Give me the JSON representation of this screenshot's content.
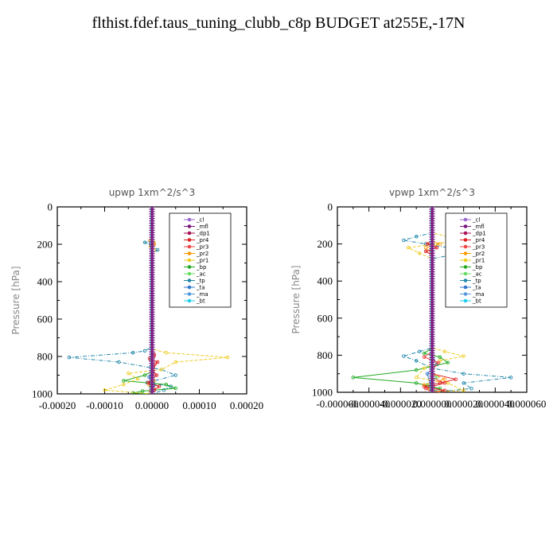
{
  "title": "flthist.fdef.taus_tuning_clubb_c8p  BUDGET at255E,-17N",
  "chart_data": [
    {
      "type": "line",
      "title": "upwp   1xm^2/s^3",
      "ylabel": "Pressure [hPa]",
      "xlim": [
        -0.0002,
        0.0002
      ],
      "ylim": [
        1000,
        0
      ],
      "xticks": [
        -0.0002,
        -0.0001,
        0,
        0.0001,
        0.0002
      ],
      "xtick_labels": [
        "-0.00020",
        "-0.00010",
        "0.00000",
        "0.00010",
        "0.00020"
      ],
      "yticks": [
        0,
        200,
        400,
        600,
        800,
        1000
      ],
      "ytick_labels": [
        "0",
        "200",
        "400",
        "600",
        "800",
        "1000"
      ],
      "legend_position": "top-right",
      "series": [
        {
          "name": "_cl",
          "color": "#9966cc",
          "x": [
            0,
            0
          ],
          "y": [
            0,
            1000
          ]
        },
        {
          "name": "_mfl",
          "color": "#7a1a7a",
          "x": [
            0,
            0
          ],
          "y": [
            0,
            1000
          ]
        },
        {
          "name": "_dp1",
          "color": "#aa1155",
          "x": [
            0,
            0
          ],
          "y": [
            0,
            1000
          ]
        },
        {
          "name": "_pr4",
          "color": "#dd2222",
          "x": [
            0,
            0,
            5e-06,
            -5e-06,
            1.2e-05,
            0,
            1e-05,
            -8e-06,
            1.5e-05,
            5e-06,
            0
          ],
          "y": [
            0,
            770,
            790,
            810,
            830,
            870,
            900,
            940,
            960,
            980,
            1000
          ]
        },
        {
          "name": "_pr3",
          "color": "#ee4444",
          "x": [
            0,
            0,
            4e-06,
            -3e-06,
            6e-06,
            0
          ],
          "y": [
            0,
            780,
            800,
            820,
            840,
            1000
          ]
        },
        {
          "name": "_pr2",
          "color": "#ff9900",
          "x": [
            0,
            0,
            -4e-06,
            5e-06,
            0,
            0,
            4e-06,
            -6e-06,
            4e-06,
            -3e-06,
            0
          ],
          "y": [
            0,
            170,
            180,
            200,
            220,
            900,
            930,
            950,
            970,
            990,
            1000
          ]
        },
        {
          "name": "_pr1",
          "color": "#eecc22",
          "x": [
            0,
            0,
            4e-06,
            -3e-06,
            5e-06,
            0,
            0,
            3e-05,
            0.00016,
            5e-05,
            2e-05,
            -5e-05,
            -3e-05,
            -6e-05,
            -0.0001,
            0
          ],
          "y": [
            0,
            180,
            190,
            210,
            230,
            250,
            760,
            780,
            805,
            830,
            870,
            890,
            920,
            950,
            980,
            1000
          ]
        },
        {
          "name": "_bp",
          "color": "#22aa22",
          "x": [
            0,
            0,
            -1.5e-05,
            -6e-05,
            3e-05,
            5e-05,
            -2e-05,
            -4e-05,
            0
          ],
          "y": [
            0,
            880,
            900,
            930,
            950,
            970,
            985,
            995,
            1000
          ]
        },
        {
          "name": "_ac",
          "color": "#66dd66",
          "x": [
            0,
            0,
            3e-06,
            -3e-06,
            0
          ],
          "y": [
            0,
            900,
            930,
            960,
            1000
          ]
        },
        {
          "name": "_tp",
          "color": "#2288aa",
          "x": [
            0,
            0,
            -1.5e-05,
            -3e-06,
            1.2e-05,
            0,
            0,
            -1.5e-05,
            -4e-05,
            -0.000175,
            -7e-05,
            2e-05,
            5e-05,
            -1e-05,
            4e-05,
            2.5e-05,
            0
          ],
          "y": [
            0,
            180,
            190,
            200,
            230,
            250,
            750,
            770,
            780,
            805,
            830,
            870,
            900,
            940,
            960,
            980,
            1000
          ]
        },
        {
          "name": "_ta",
          "color": "#3377cc",
          "x": [
            0,
            0,
            -6e-06,
            5e-06,
            0
          ],
          "y": [
            0,
            880,
            910,
            950,
            1000
          ]
        },
        {
          "name": "_ma",
          "color": "#5599dd",
          "x": [
            0,
            0
          ],
          "y": [
            0,
            1000
          ]
        },
        {
          "name": "_bt",
          "color": "#22ccee",
          "x": [
            0,
            0
          ],
          "y": [
            0,
            1000
          ]
        }
      ]
    },
    {
      "type": "line",
      "title": "vpwp   1xm^2/s^3",
      "ylabel": "Pressure [hPa]",
      "xlim": [
        -6e-05,
        6e-05
      ],
      "ylim": [
        1000,
        0
      ],
      "xticks": [
        -6e-05,
        -4e-05,
        -2e-05,
        0,
        2e-05,
        4e-05,
        6e-05
      ],
      "xtick_labels": [
        "-0.000060",
        "-0.000040",
        "-0.000020",
        "0.000000",
        "0.000020",
        "0.000040",
        "0.000060"
      ],
      "yticks": [
        0,
        200,
        400,
        600,
        800,
        1000
      ],
      "ytick_labels": [
        "0",
        "200",
        "400",
        "600",
        "800",
        "1000"
      ],
      "legend_position": "top-right",
      "series": [
        {
          "name": "_cl",
          "color": "#9966cc",
          "x": [
            0,
            0
          ],
          "y": [
            0,
            1000
          ]
        },
        {
          "name": "_mfl",
          "color": "#7a1a7a",
          "x": [
            0,
            0
          ],
          "y": [
            0,
            1000
          ]
        },
        {
          "name": "_dp1",
          "color": "#aa1155",
          "x": [
            0,
            0
          ],
          "y": [
            0,
            1000
          ]
        },
        {
          "name": "_pr4",
          "color": "#dd2222",
          "x": [
            0,
            0,
            -3e-06,
            3e-06,
            -4e-06,
            0,
            0,
            1.5e-05,
            5e-06,
            -5e-06,
            8e-06,
            0
          ],
          "y": [
            0,
            180,
            200,
            220,
            240,
            260,
            900,
            930,
            950,
            970,
            990,
            1000
          ]
        },
        {
          "name": "_pr3",
          "color": "#ee4444",
          "x": [
            0,
            0,
            -5e-06,
            4e-06,
            0,
            0,
            8e-06,
            -4e-06,
            0
          ],
          "y": [
            0,
            780,
            810,
            840,
            880,
            920,
            950,
            980,
            1000
          ]
        },
        {
          "name": "_pr2",
          "color": "#ff9900",
          "x": [
            0,
            0,
            5e-06,
            -4e-06,
            0,
            0,
            8e-06,
            -5e-06,
            0
          ],
          "y": [
            0,
            180,
            200,
            220,
            260,
            900,
            930,
            960,
            1000
          ]
        },
        {
          "name": "_pr1",
          "color": "#eecc22",
          "x": [
            0,
            0,
            1e-05,
            1.8e-05,
            2e-06,
            -1.5e-05,
            -8e-06,
            0,
            0,
            8e-06,
            2e-05,
            5e-06,
            -5e-06,
            -1e-05,
            1e-05,
            2e-05,
            0
          ],
          "y": [
            0,
            140,
            160,
            180,
            200,
            220,
            250,
            280,
            760,
            780,
            805,
            830,
            870,
            920,
            950,
            990,
            1000
          ]
        },
        {
          "name": "_bp",
          "color": "#22aa22",
          "x": [
            0,
            0,
            -5e-06,
            5e-06,
            1e-05,
            -1e-05,
            -5e-05,
            -1e-05,
            5e-06,
            0
          ],
          "y": [
            0,
            760,
            790,
            810,
            840,
            880,
            920,
            950,
            980,
            1000
          ]
        },
        {
          "name": "_ac",
          "color": "#66dd66",
          "x": [
            0,
            0,
            3e-06,
            -3e-06,
            0
          ],
          "y": [
            0,
            880,
            920,
            960,
            1000
          ]
        },
        {
          "name": "_tp",
          "color": "#2288aa",
          "x": [
            0,
            0,
            -1e-05,
            -1.8e-05,
            -4e-06,
            1e-05,
            2.5e-05,
            1.2e-05,
            0,
            0,
            -8e-06,
            -1.8e-05,
            -1e-05,
            0,
            2e-05,
            5e-05,
            2e-05,
            2.5e-05,
            0
          ],
          "y": [
            0,
            140,
            160,
            180,
            200,
            220,
            240,
            260,
            280,
            760,
            780,
            805,
            830,
            870,
            900,
            920,
            950,
            980,
            1000
          ]
        },
        {
          "name": "_ta",
          "color": "#3377cc",
          "x": [
            0,
            0,
            3e-06,
            -3e-06,
            0
          ],
          "y": [
            0,
            800,
            850,
            900,
            1000
          ]
        },
        {
          "name": "_ma",
          "color": "#5599dd",
          "x": [
            0,
            0
          ],
          "y": [
            0,
            1000
          ]
        },
        {
          "name": "_bt",
          "color": "#22ccee",
          "x": [
            0,
            0
          ],
          "y": [
            0,
            1000
          ]
        }
      ]
    }
  ]
}
